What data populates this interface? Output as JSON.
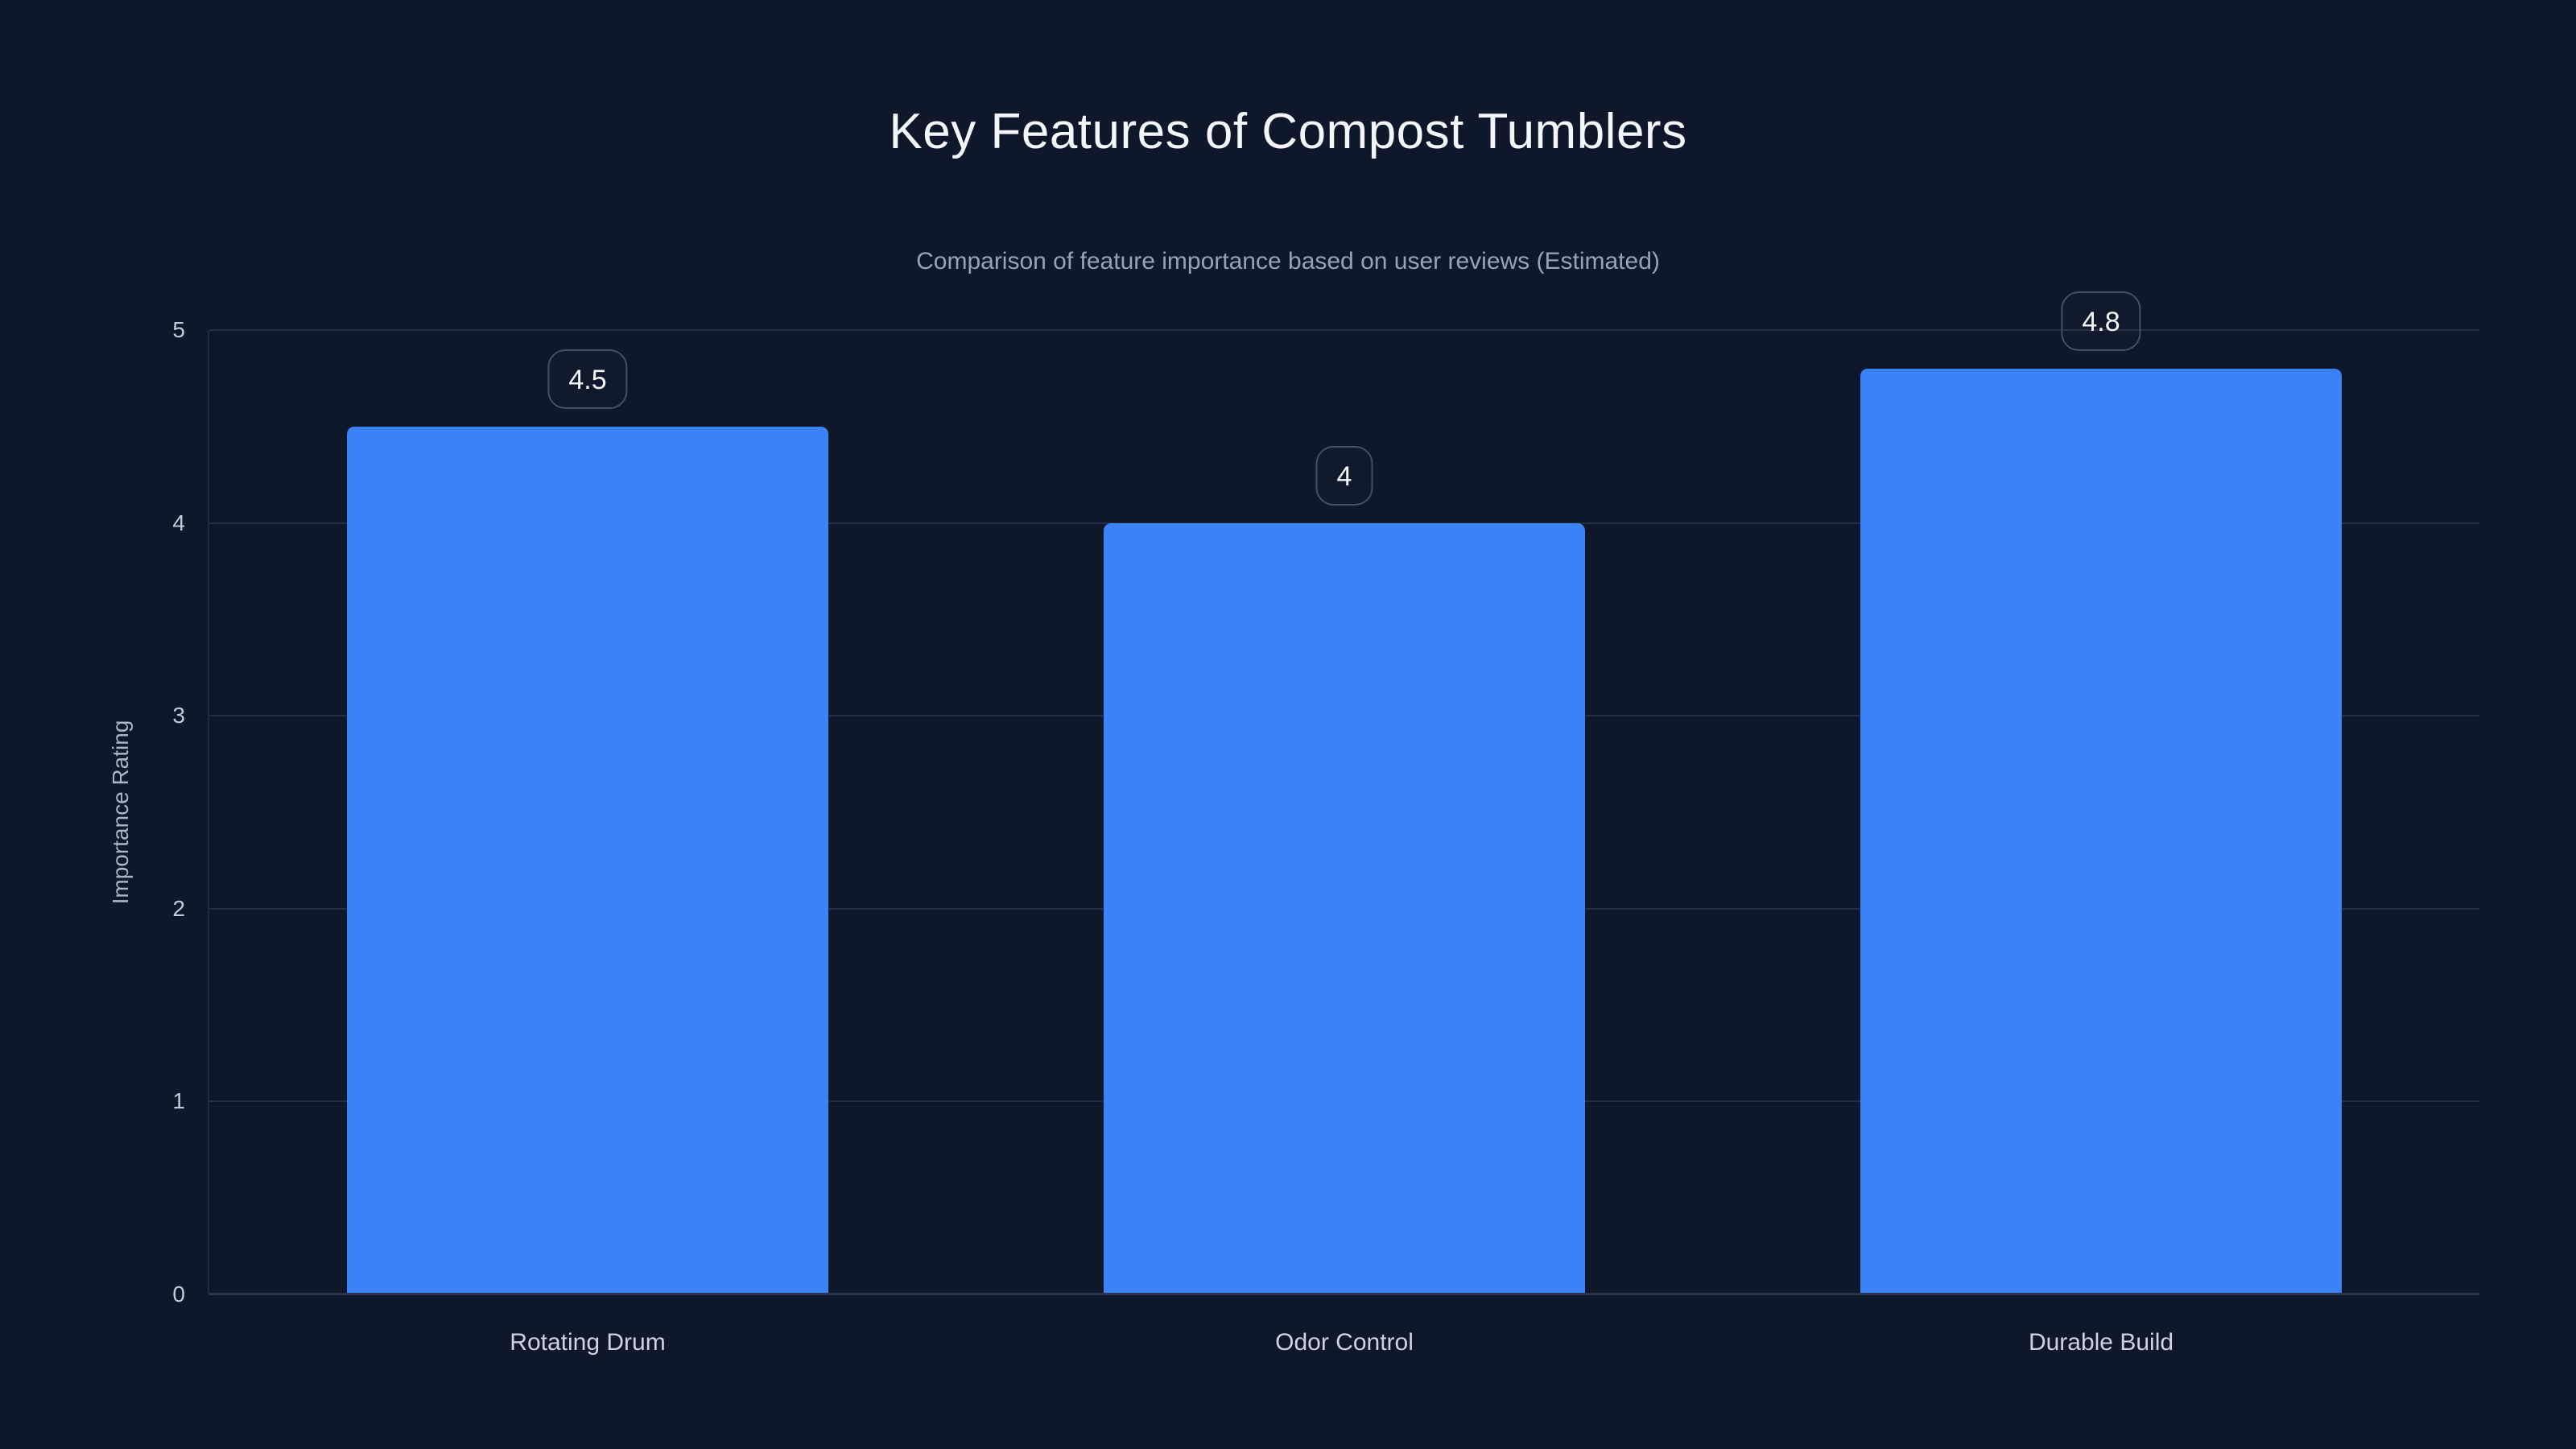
{
  "chart_data": {
    "type": "bar",
    "title": "Key Features of Compost Tumblers",
    "subtitle": "Comparison of feature importance based on user reviews (Estimated)",
    "ylabel": "Importance Rating",
    "xlabel": "",
    "categories": [
      "Rotating Drum",
      "Odor Control",
      "Durable Build"
    ],
    "values": [
      4.5,
      4,
      4.8
    ],
    "value_labels": [
      "4.5",
      "4",
      "4.8"
    ],
    "ylim": [
      0,
      5
    ],
    "yticks": [
      0,
      1,
      2,
      3,
      4,
      5
    ],
    "grid": true,
    "legend_position": "none",
    "bar_color": "#3b82f6"
  },
  "colors": {
    "background": "#0f172a",
    "bar": "#3b82f6",
    "gridline": "#232e44",
    "x_axis_line": "#2b364c",
    "y_axis_line": "#1f2a3e",
    "title_text": "#f3f6fa",
    "subtitle_text": "#94a3b8",
    "tick_text": "#c2ccda",
    "category_text": "#ccd4e0",
    "badge_border": "#434f63",
    "badge_text": "#f5f7fa"
  }
}
